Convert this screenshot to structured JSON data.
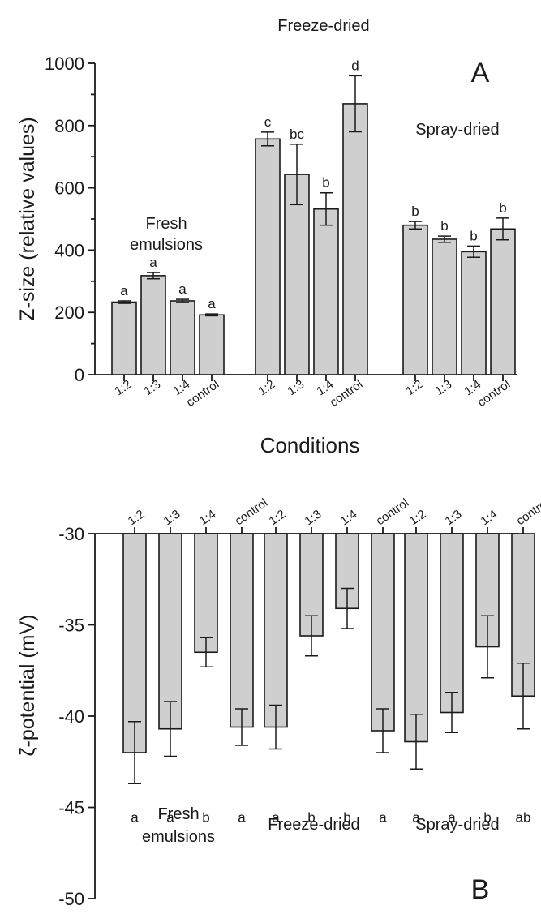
{
  "chart_data": [
    {
      "panel": "A",
      "type": "bar",
      "ylabel": "Z-size (relative values)",
      "xlabel": "Conditions",
      "ylim": [
        0,
        1000
      ],
      "yticks": [
        0,
        200,
        400,
        600,
        800,
        1000
      ],
      "groups": [
        {
          "name": "Fresh emulsions",
          "categories": [
            "1:2",
            "1:3",
            "1:4",
            "control"
          ],
          "values": [
            233,
            318,
            237,
            192
          ],
          "errors": [
            4,
            10,
            5,
            3
          ],
          "letters": [
            "a",
            "a",
            "a",
            "a"
          ]
        },
        {
          "name": "Freeze-dried",
          "categories": [
            "1:2",
            "1:3",
            "1:4",
            "control"
          ],
          "values": [
            757,
            643,
            532,
            870
          ],
          "errors": [
            22,
            97,
            52,
            90
          ],
          "letters": [
            "c",
            "bc",
            "b",
            "d"
          ]
        },
        {
          "name": "Spray-dried",
          "categories": [
            "1:2",
            "1:3",
            "1:4",
            "control"
          ],
          "values": [
            480,
            435,
            395,
            468
          ],
          "errors": [
            12,
            10,
            18,
            35
          ],
          "letters": [
            "b",
            "b",
            "b",
            "b"
          ]
        }
      ]
    },
    {
      "panel": "B",
      "type": "bar",
      "ylabel": "ζ-potential (mV)",
      "xlabel": "",
      "ylim": [
        -50,
        -30
      ],
      "yticks": [
        -30,
        -35,
        -40,
        -45,
        -50
      ],
      "groups": [
        {
          "name": "Fresh emulsions",
          "categories": [
            "1:2",
            "1:3",
            "1:4",
            "control"
          ],
          "values": [
            -42.0,
            -40.7,
            -36.5,
            -40.6
          ],
          "errors": [
            1.7,
            1.5,
            0.8,
            1.0
          ],
          "letters": [
            "a",
            "a",
            "b",
            "a"
          ]
        },
        {
          "name": "Freeze-dried",
          "categories": [
            "1:2",
            "1:3",
            "1:4",
            "control"
          ],
          "values": [
            -40.6,
            -35.6,
            -34.1,
            -40.8
          ],
          "errors": [
            1.2,
            1.1,
            1.1,
            1.2
          ],
          "letters": [
            "a",
            "b",
            "b",
            "a"
          ]
        },
        {
          "name": "Spray-dried",
          "categories": [
            "1:2",
            "1:3",
            "1:4",
            "control"
          ],
          "values": [
            -41.4,
            -39.8,
            -36.2,
            -38.9
          ],
          "errors": [
            1.5,
            1.1,
            1.7,
            1.8
          ],
          "letters": [
            "a",
            "a",
            "b",
            "ab"
          ]
        }
      ]
    }
  ]
}
